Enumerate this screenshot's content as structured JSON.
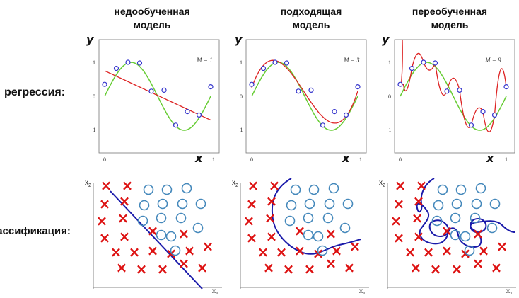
{
  "columns": [
    {
      "line1": "недообученная",
      "line2": "модель"
    },
    {
      "line1": "подходящая",
      "line2": "модель"
    },
    {
      "line1": "переобученная",
      "line2": "модель"
    }
  ],
  "rows": {
    "regression": "регрессия:",
    "classification": "классификация:"
  },
  "axes": {
    "y": "y",
    "x": "x",
    "x1": "x",
    "x1_sub": "1",
    "x2": "x",
    "x2_sub": "2"
  },
  "ticks": {
    "y_pos": "1",
    "y_zero": "0",
    "y_neg": "−1",
    "x_zero": "0",
    "x_one": "1"
  },
  "model_orders": [
    "M = 1",
    "M = 3",
    "M = 9"
  ],
  "colors": {
    "true_curve": "#66cc33",
    "fit_curve": "#dd2222",
    "points": "#3333cc",
    "cross": "#dd1111",
    "circle": "#4488bb",
    "boundary": "#1a1aaa"
  },
  "regression_points": {
    "x": [
      0.0,
      0.11,
      0.22,
      0.33,
      0.44,
      0.56,
      0.67,
      0.78,
      0.89,
      1.0
    ],
    "t": [
      0.35,
      0.82,
      1.0,
      0.98,
      0.15,
      0.18,
      -0.85,
      -0.45,
      -0.55,
      0.28
    ]
  },
  "cross_markers": "×",
  "circle_markers": "○"
}
